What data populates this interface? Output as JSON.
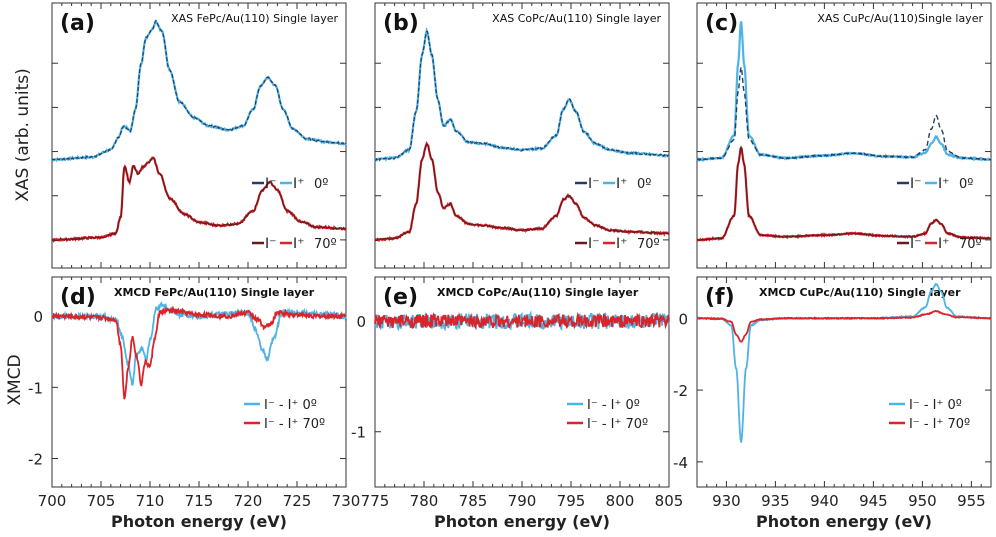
{
  "colors": {
    "blue": "#4fb3e6",
    "navy": "#213f63",
    "red": "#d9242a",
    "darkred": "#6a1a1d",
    "axis": "#333333"
  },
  "ylabels": {
    "top": "XAS (arb. units)",
    "bottom": "XMCD"
  },
  "chart_data": [
    {
      "panel": "(a)",
      "type": "line",
      "title": "XAS FePc/Au(110) Single layer",
      "xlabel": "Photon energy (eV)",
      "ylabel": "XAS (arb. units)",
      "xlim": [
        700,
        730
      ],
      "x_ticks": [
        700,
        705,
        710,
        715,
        720,
        725,
        730
      ],
      "legend": [
        {
          "minus": "I⁻",
          "plus": "I⁺",
          "angle": "0º"
        },
        {
          "minus": "I⁻",
          "plus": "I⁺",
          "angle": "70º"
        }
      ],
      "series": [
        {
          "group": "0º",
          "x": [
            700,
            704,
            706,
            706.8,
            707.3,
            708,
            708.5,
            709.1,
            709.6,
            710.2,
            710.6,
            711.2,
            712,
            713,
            714.5,
            716,
            718,
            719.5,
            720.5,
            721.3,
            722,
            722.8,
            723.6,
            724.6,
            726,
            728,
            730
          ],
          "y": [
            1.0,
            1.03,
            1.12,
            1.28,
            1.42,
            1.36,
            1.62,
            2.2,
            2.52,
            2.62,
            2.72,
            2.6,
            2.12,
            1.72,
            1.52,
            1.42,
            1.37,
            1.42,
            1.62,
            1.92,
            2.02,
            1.92,
            1.62,
            1.38,
            1.26,
            1.22,
            1.2
          ]
        },
        {
          "group": "70º",
          "x": [
            700,
            705,
            706.5,
            707,
            707.4,
            707.9,
            708.3,
            708.8,
            709.2,
            709.8,
            710.3,
            711,
            712,
            713.5,
            715,
            717,
            719,
            720.5,
            721.5,
            722.2,
            723,
            724,
            725.5,
            727,
            730
          ],
          "y": [
            0.0,
            0.03,
            0.08,
            0.28,
            0.92,
            0.72,
            0.92,
            0.82,
            0.9,
            0.96,
            1.02,
            0.82,
            0.52,
            0.32,
            0.22,
            0.18,
            0.2,
            0.36,
            0.62,
            0.72,
            0.62,
            0.36,
            0.22,
            0.16,
            0.14
          ]
        }
      ]
    },
    {
      "panel": "(b)",
      "type": "line",
      "title": "XAS CoPc/Au(110) Single layer",
      "xlabel": "Photon energy (eV)",
      "xlim": [
        775,
        805
      ],
      "x_ticks": [
        775,
        780,
        785,
        790,
        795,
        800,
        805
      ],
      "legend": [
        {
          "minus": "I⁻",
          "plus": "I⁺",
          "angle": "0º"
        },
        {
          "minus": "I⁻",
          "plus": "I⁺",
          "angle": "70º"
        }
      ],
      "series": [
        {
          "group": "0º",
          "x": [
            775,
            777,
            778.5,
            779.2,
            779.8,
            780.3,
            780.8,
            781.4,
            782,
            782.7,
            783.3,
            784.5,
            786,
            788,
            790,
            792,
            793.5,
            794.2,
            794.8,
            795.5,
            796.3,
            797.5,
            799,
            801,
            805
          ],
          "y": [
            1.0,
            1.02,
            1.12,
            1.6,
            2.3,
            2.6,
            2.3,
            1.75,
            1.42,
            1.5,
            1.35,
            1.22,
            1.2,
            1.15,
            1.12,
            1.14,
            1.3,
            1.62,
            1.75,
            1.6,
            1.35,
            1.2,
            1.12,
            1.08,
            1.05
          ]
        },
        {
          "group": "70º",
          "x": [
            775,
            777,
            778.5,
            779.2,
            779.8,
            780.3,
            780.8,
            781.4,
            782,
            782.7,
            783.3,
            784.5,
            786,
            788,
            790,
            792,
            793.5,
            794.2,
            794.8,
            795.5,
            796.3,
            797.5,
            799,
            801,
            805
          ],
          "y": [
            0.0,
            0.02,
            0.1,
            0.45,
            1.0,
            1.2,
            1.0,
            0.6,
            0.4,
            0.45,
            0.3,
            0.2,
            0.18,
            0.15,
            0.12,
            0.14,
            0.3,
            0.5,
            0.55,
            0.45,
            0.28,
            0.18,
            0.12,
            0.1,
            0.08
          ]
        }
      ]
    },
    {
      "panel": "(c)",
      "type": "line",
      "title": "XAS CuPc/Au(110)Single layer",
      "xlabel": "Photon energy (eV)",
      "xlim": [
        927,
        957
      ],
      "x_ticks": [
        930,
        935,
        940,
        945,
        950,
        955
      ],
      "legend": [
        {
          "minus": "I⁻",
          "plus": "I⁺",
          "angle": "0º"
        },
        {
          "minus": "I⁻",
          "plus": "I⁺",
          "angle": "70º"
        }
      ],
      "series": [
        {
          "group": "0º I⁺",
          "x": [
            927,
            929.5,
            930.8,
            931.2,
            931.5,
            931.8,
            932.3,
            933.5,
            936,
            940,
            943,
            946,
            949,
            950.3,
            950.9,
            951.4,
            951.9,
            952.6,
            954,
            957
          ],
          "y": [
            1.0,
            1.02,
            1.3,
            2.2,
            2.72,
            2.2,
            1.3,
            1.06,
            1.02,
            1.05,
            1.08,
            1.04,
            1.03,
            1.08,
            1.2,
            1.28,
            1.2,
            1.06,
            1.02,
            1.0
          ]
        },
        {
          "group": "0º I⁻",
          "x": [
            927,
            929.5,
            930.8,
            931.2,
            931.5,
            931.8,
            932.3,
            933.5,
            936,
            940,
            943,
            946,
            949,
            950.3,
            950.9,
            951.4,
            951.9,
            952.6,
            954,
            957
          ],
          "y": [
            1.0,
            1.02,
            1.25,
            1.85,
            2.15,
            1.85,
            1.25,
            1.06,
            1.02,
            1.05,
            1.08,
            1.04,
            1.03,
            1.12,
            1.38,
            1.55,
            1.38,
            1.1,
            1.02,
            1.0
          ]
        },
        {
          "group": "70º",
          "x": [
            927,
            929.5,
            930.8,
            931.2,
            931.5,
            931.8,
            932.3,
            933.5,
            936,
            940,
            943,
            946,
            949,
            950.3,
            950.9,
            951.4,
            951.9,
            952.6,
            954,
            957
          ],
          "y": [
            0.0,
            0.02,
            0.3,
            0.95,
            1.15,
            0.95,
            0.3,
            0.06,
            0.04,
            0.06,
            0.08,
            0.05,
            0.04,
            0.08,
            0.2,
            0.25,
            0.2,
            0.08,
            0.03,
            0.02
          ]
        }
      ]
    },
    {
      "panel": "(d)",
      "type": "line",
      "title": "XMCD FePc/Au(110) Single layer",
      "xlabel": "Photon energy (eV)",
      "ylabel": "XMCD",
      "xlim": [
        700,
        730
      ],
      "ylim": [
        -2.4,
        0.55
      ],
      "x_ticks": [
        700,
        705,
        710,
        715,
        720,
        725,
        730
      ],
      "y_ticks": [
        0,
        -1,
        -2
      ],
      "legend": [
        {
          "minus": "I⁻",
          "plus": "I⁺",
          "angle": "0º"
        },
        {
          "minus": "I⁻",
          "plus": "I⁺",
          "angle": "70º"
        }
      ],
      "series": [
        {
          "group": "0º",
          "x": [
            700,
            705,
            706.5,
            707.2,
            707.7,
            708.2,
            708.6,
            709.2,
            709.6,
            710.1,
            710.6,
            711.2,
            712,
            713,
            715,
            718,
            720,
            720.8,
            721.5,
            722,
            722.6,
            723.5,
            725,
            727,
            730
          ],
          "y": [
            0.0,
            0.0,
            -0.05,
            -0.3,
            -0.65,
            -0.95,
            -0.55,
            -0.45,
            -0.6,
            -0.3,
            0.1,
            0.15,
            0.1,
            0.02,
            0.0,
            0.03,
            0.05,
            -0.2,
            -0.5,
            -0.6,
            -0.3,
            0.05,
            0.05,
            0.03,
            0.0
          ]
        },
        {
          "group": "70º",
          "x": [
            700,
            705,
            706.5,
            707,
            707.4,
            707.8,
            708.2,
            708.7,
            709.1,
            709.5,
            710,
            710.5,
            711,
            712,
            715,
            718,
            720,
            721,
            721.7,
            722.3,
            723,
            725,
            727,
            730
          ],
          "y": [
            0.0,
            -0.02,
            -0.05,
            -0.4,
            -1.15,
            -0.7,
            -0.3,
            -0.6,
            -0.95,
            -0.65,
            -0.7,
            -0.3,
            0.05,
            0.08,
            0.02,
            0.0,
            0.05,
            -0.05,
            -0.15,
            -0.12,
            0.05,
            0.02,
            0.0,
            0.0
          ]
        }
      ]
    },
    {
      "panel": "(e)",
      "type": "line",
      "title": "XMCD CoPc/Au(110) Single layer",
      "xlabel": "Photon energy (eV)",
      "xlim": [
        775,
        805
      ],
      "ylim": [
        -1.5,
        0.4
      ],
      "x_ticks": [
        775,
        780,
        785,
        790,
        795,
        800,
        805
      ],
      "y_ticks": [
        0,
        -1
      ],
      "legend": [
        {
          "minus": "I⁻",
          "plus": "I⁺",
          "angle": "0º"
        },
        {
          "minus": "I⁻",
          "plus": "I⁺",
          "angle": "70º"
        }
      ],
      "series": [
        {
          "group": "0º",
          "x": [
            775,
            805
          ],
          "y": [
            0.0,
            0.0
          ],
          "noise": 0.07
        },
        {
          "group": "70º",
          "x": [
            775,
            805
          ],
          "y": [
            0.0,
            0.0
          ],
          "noise": 0.06
        }
      ]
    },
    {
      "panel": "(f)",
      "type": "line",
      "title": "XMCD CuPc/Au(110) Single layer",
      "xlabel": "Photon energy (eV)",
      "xlim": [
        927,
        957
      ],
      "ylim": [
        -4.7,
        1.15
      ],
      "x_ticks": [
        930,
        935,
        940,
        945,
        950,
        955
      ],
      "y_ticks": [
        0,
        -2,
        -4
      ],
      "legend": [
        {
          "minus": "I⁻",
          "plus": "I⁺",
          "angle": "0º"
        },
        {
          "minus": "I⁻",
          "plus": "I⁺",
          "angle": "70º"
        }
      ],
      "series": [
        {
          "group": "0º",
          "x": [
            927,
            929.5,
            930.5,
            931,
            931.5,
            932,
            932.5,
            933.5,
            936,
            940,
            945,
            949,
            950.3,
            950.9,
            951.4,
            951.9,
            952.5,
            953.5,
            957
          ],
          "y": [
            0.0,
            0.0,
            -0.2,
            -1.4,
            -3.45,
            -1.4,
            -0.2,
            -0.05,
            0.0,
            0.0,
            0.0,
            0.05,
            0.3,
            0.75,
            0.95,
            0.75,
            0.3,
            0.05,
            0.0
          ]
        },
        {
          "group": "70º",
          "x": [
            927,
            929.5,
            930.5,
            931,
            931.5,
            932,
            932.5,
            933.5,
            936,
            945,
            949,
            950.5,
            951.4,
            952.2,
            953.5,
            957
          ],
          "y": [
            0.0,
            -0.02,
            -0.1,
            -0.45,
            -0.65,
            -0.45,
            -0.1,
            -0.03,
            0.0,
            0.0,
            0.02,
            0.12,
            0.2,
            0.12,
            0.03,
            0.0
          ]
        }
      ]
    }
  ]
}
